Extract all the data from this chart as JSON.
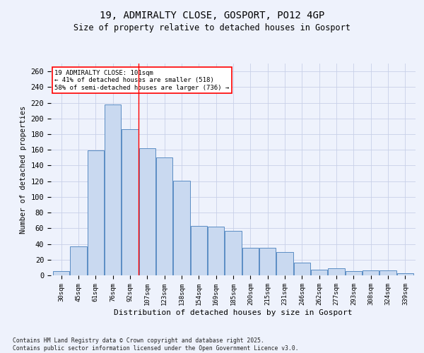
{
  "title_line1": "19, ADMIRALTY CLOSE, GOSPORT, PO12 4GP",
  "title_line2": "Size of property relative to detached houses in Gosport",
  "xlabel": "Distribution of detached houses by size in Gosport",
  "ylabel": "Number of detached properties",
  "categories": [
    "30sqm",
    "45sqm",
    "61sqm",
    "76sqm",
    "92sqm",
    "107sqm",
    "123sqm",
    "138sqm",
    "154sqm",
    "169sqm",
    "185sqm",
    "200sqm",
    "215sqm",
    "231sqm",
    "246sqm",
    "262sqm",
    "277sqm",
    "293sqm",
    "308sqm",
    "324sqm",
    "339sqm"
  ],
  "values": [
    5,
    37,
    159,
    218,
    186,
    162,
    150,
    121,
    63,
    62,
    57,
    35,
    35,
    30,
    16,
    7,
    9,
    5,
    6,
    6,
    3
  ],
  "bar_color": "#c9d9f0",
  "bar_edge_color": "#5b8dc4",
  "vline_x": 4.5,
  "vline_color": "red",
  "annotation_text": "19 ADMIRALTY CLOSE: 101sqm\n← 41% of detached houses are smaller (518)\n58% of semi-detached houses are larger (736) →",
  "annotation_box_color": "white",
  "annotation_box_edge": "red",
  "ylim": [
    0,
    270
  ],
  "yticks": [
    0,
    20,
    40,
    60,
    80,
    100,
    120,
    140,
    160,
    180,
    200,
    220,
    240,
    260
  ],
  "footer1": "Contains HM Land Registry data © Crown copyright and database right 2025.",
  "footer2": "Contains public sector information licensed under the Open Government Licence v3.0.",
  "bg_color": "#eef2fc",
  "grid_color": "#c8d0e8"
}
